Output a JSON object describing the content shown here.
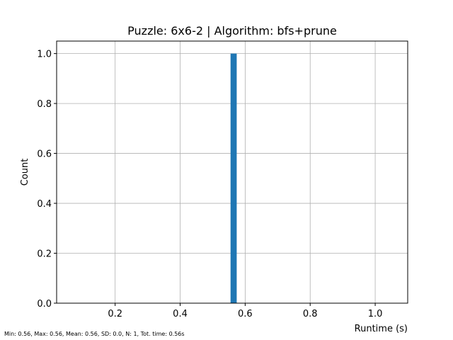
{
  "chart_data": {
    "type": "bar",
    "title": "Puzzle: 6x6-2 | Algorithm: bfs+prune",
    "xlabel": "Runtime (s)",
    "ylabel": "Count",
    "xlim": [
      0.02,
      1.1
    ],
    "ylim": [
      0,
      1.05
    ],
    "xticks": [
      "0.2",
      "0.4",
      "0.6",
      "0.8",
      "1.0"
    ],
    "yticks": [
      "0.0",
      "0.2",
      "0.4",
      "0.6",
      "0.8",
      "1.0"
    ],
    "grid": true,
    "bars": [
      {
        "x_start": 0.555,
        "x_end": 0.574,
        "count": 1
      }
    ],
    "colors": {
      "bar": "#1f77b4",
      "grid": "#b0b0b0",
      "axes": "#000000"
    },
    "footer": "Min: 0.56, Max: 0.56, Mean: 0.56, SD: 0.0, N: 1, Tot. time: 0.56s"
  }
}
